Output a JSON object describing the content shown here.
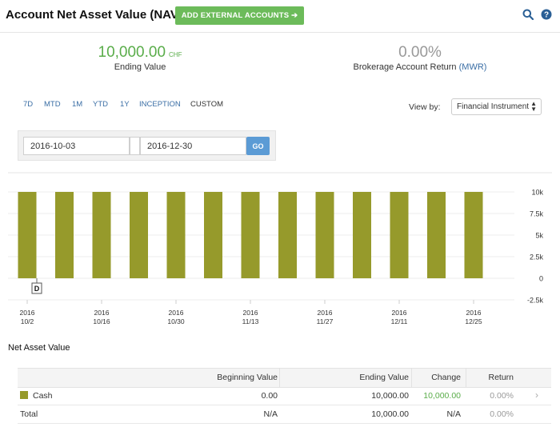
{
  "header": {
    "title": "Account Net Asset Value (NAV)",
    "add_button": "ADD EXTERNAL ACCOUNTS ➔",
    "search_icon": "search-icon",
    "help_icon": "help-icon"
  },
  "summary": {
    "ending_value": "10,000.00",
    "ending_currency": "CHF",
    "ending_label": "Ending Value",
    "return_value": "0.00%",
    "return_label": "Brokerage Account Return",
    "return_method": "(MWR)"
  },
  "ranges": [
    "7D",
    "MTD",
    "1M",
    "YTD",
    "1Y",
    "INCEPTION",
    "CUSTOM"
  ],
  "active_range": "CUSTOM",
  "view_by": {
    "label": "View by:",
    "selected": "Financial Instrument"
  },
  "dates": {
    "from": "2016-10-03",
    "to": "2016-12-30",
    "go": "GO"
  },
  "chart_data": {
    "type": "bar",
    "categories": [
      "2016-10-02",
      "2016-10-09",
      "2016-10-16",
      "2016-10-23",
      "2016-10-30",
      "2016-11-06",
      "2016-11-13",
      "2016-11-20",
      "2016-11-27",
      "2016-12-04",
      "2016-12-11",
      "2016-12-18",
      "2016-12-25"
    ],
    "values": [
      10000,
      10000,
      10000,
      10000,
      10000,
      10000,
      10000,
      10000,
      10000,
      10000,
      10000,
      10000,
      10000
    ],
    "series_name": "Cash",
    "bar_color": "#969a2b",
    "ylim": [
      -2500,
      10000
    ],
    "yticks": [
      "10k",
      "7.5k",
      "5k",
      "2.5k",
      "0",
      "-2.5k"
    ],
    "xtick_labels": [
      {
        "year": "2016",
        "date": "10/2"
      },
      {
        "year": "2016",
        "date": "10/16"
      },
      {
        "year": "2016",
        "date": "10/30"
      },
      {
        "year": "2016",
        "date": "11/13"
      },
      {
        "year": "2016",
        "date": "11/27"
      },
      {
        "year": "2016",
        "date": "12/11"
      },
      {
        "year": "2016",
        "date": "12/25"
      }
    ],
    "annotation": "D",
    "legend": "none"
  },
  "nav_table": {
    "title": "Net Asset Value",
    "columns": [
      "Beginning Value",
      "Ending Value",
      "Change",
      "Return"
    ],
    "rows": [
      {
        "name": "Cash",
        "beginning": "0.00",
        "ending": "10,000.00",
        "change": "10,000.00",
        "return": "0.00%"
      }
    ],
    "total": {
      "name": "Total",
      "beginning": "N/A",
      "ending": "10,000.00",
      "change": "N/A",
      "return": "0.00%"
    },
    "colors": {
      "positive": "#5aad4a",
      "muted": "#999999",
      "swatch": "#969a2b"
    }
  }
}
